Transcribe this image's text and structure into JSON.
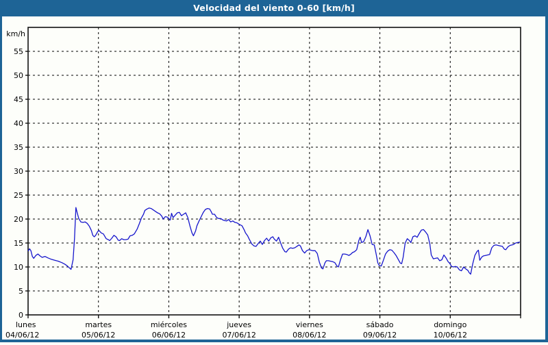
{
  "window": {
    "title": "Velocidad del viento 0-60 [km/h]"
  },
  "colors": {
    "header_bg": "#1e6496",
    "frame": "#1e6496",
    "plot_border": "#111111",
    "grid": "#000000",
    "line": "#1515cc",
    "text": "#000000",
    "title_text": "#ffffff",
    "background": "#fdfefa"
  },
  "chart_data": {
    "type": "line",
    "title": "Velocidad del viento 0-60 [km/h]",
    "xlabel": "",
    "ylabel": "km/h",
    "ylim": [
      0,
      60
    ],
    "y_ticks": [
      0,
      5,
      10,
      15,
      20,
      25,
      30,
      35,
      40,
      45,
      50,
      55
    ],
    "x_unit": "days",
    "x_range_days": [
      0,
      7
    ],
    "grid": "dashed-black-both-axes",
    "legend": "none",
    "x_days": [
      {
        "name": "lunes",
        "date": "04/06/12"
      },
      {
        "name": "martes",
        "date": "05/06/12"
      },
      {
        "name": "miércoles",
        "date": "06/06/12"
      },
      {
        "name": "jueves",
        "date": "07/06/12"
      },
      {
        "name": "viernes",
        "date": "08/06/12"
      },
      {
        "name": "sábado",
        "date": "09/06/12"
      },
      {
        "name": "domingo",
        "date": "10/06/12"
      }
    ],
    "series": [
      {
        "name": "Velocidad del viento",
        "color": "#1515cc",
        "points": [
          [
            0.0,
            13.3
          ],
          [
            0.02,
            13.8
          ],
          [
            0.04,
            13.4
          ],
          [
            0.06,
            12.2
          ],
          [
            0.08,
            11.8
          ],
          [
            0.11,
            12.4
          ],
          [
            0.14,
            12.7
          ],
          [
            0.17,
            12.3
          ],
          [
            0.2,
            12.0
          ],
          [
            0.24,
            12.2
          ],
          [
            0.28,
            11.9
          ],
          [
            0.33,
            11.6
          ],
          [
            0.38,
            11.4
          ],
          [
            0.43,
            11.2
          ],
          [
            0.48,
            10.9
          ],
          [
            0.52,
            10.6
          ],
          [
            0.55,
            10.3
          ],
          [
            0.58,
            9.9
          ],
          [
            0.61,
            9.5
          ],
          [
            0.64,
            11.5
          ],
          [
            0.66,
            16.0
          ],
          [
            0.68,
            22.4
          ],
          [
            0.7,
            21.2
          ],
          [
            0.72,
            20.1
          ],
          [
            0.75,
            19.4
          ],
          [
            0.78,
            19.3
          ],
          [
            0.81,
            19.4
          ],
          [
            0.84,
            19.1
          ],
          [
            0.87,
            18.5
          ],
          [
            0.9,
            17.6
          ],
          [
            0.92,
            16.6
          ],
          [
            0.94,
            16.3
          ],
          [
            0.96,
            16.6
          ],
          [
            0.99,
            17.4
          ],
          [
            1.01,
            17.6
          ],
          [
            1.04,
            17.1
          ],
          [
            1.07,
            16.9
          ],
          [
            1.11,
            15.9
          ],
          [
            1.14,
            15.7
          ],
          [
            1.16,
            15.5
          ],
          [
            1.19,
            16.0
          ],
          [
            1.22,
            16.6
          ],
          [
            1.25,
            16.3
          ],
          [
            1.28,
            15.6
          ],
          [
            1.3,
            15.5
          ],
          [
            1.33,
            15.9
          ],
          [
            1.36,
            15.7
          ],
          [
            1.39,
            15.7
          ],
          [
            1.42,
            15.8
          ],
          [
            1.45,
            16.5
          ],
          [
            1.48,
            16.6
          ],
          [
            1.51,
            16.9
          ],
          [
            1.55,
            17.9
          ],
          [
            1.58,
            19.0
          ],
          [
            1.61,
            20.2
          ],
          [
            1.64,
            21.0
          ],
          [
            1.66,
            21.8
          ],
          [
            1.69,
            22.1
          ],
          [
            1.72,
            22.3
          ],
          [
            1.75,
            22.2
          ],
          [
            1.78,
            21.9
          ],
          [
            1.81,
            21.6
          ],
          [
            1.84,
            21.3
          ],
          [
            1.87,
            21.1
          ],
          [
            1.9,
            20.6
          ],
          [
            1.92,
            20.0
          ],
          [
            1.95,
            20.5
          ],
          [
            1.98,
            20.4
          ],
          [
            2.02,
            19.8
          ],
          [
            2.04,
            21.2
          ],
          [
            2.06,
            20.3
          ],
          [
            2.09,
            20.8
          ],
          [
            2.12,
            21.3
          ],
          [
            2.15,
            21.4
          ],
          [
            2.18,
            20.7
          ],
          [
            2.21,
            21.0
          ],
          [
            2.24,
            21.3
          ],
          [
            2.27,
            20.3
          ],
          [
            2.3,
            18.6
          ],
          [
            2.33,
            17.1
          ],
          [
            2.35,
            16.5
          ],
          [
            2.38,
            17.5
          ],
          [
            2.4,
            18.6
          ],
          [
            2.43,
            19.6
          ],
          [
            2.46,
            20.5
          ],
          [
            2.49,
            21.4
          ],
          [
            2.52,
            22.0
          ],
          [
            2.55,
            22.2
          ],
          [
            2.58,
            22.1
          ],
          [
            2.6,
            21.6
          ],
          [
            2.62,
            21.0
          ],
          [
            2.65,
            21.0
          ],
          [
            2.68,
            20.3
          ],
          [
            2.71,
            20.1
          ],
          [
            2.74,
            20.1
          ],
          [
            2.77,
            19.8
          ],
          [
            2.79,
            19.7
          ],
          [
            2.82,
            19.6
          ],
          [
            2.85,
            19.9
          ],
          [
            2.88,
            19.4
          ],
          [
            2.91,
            19.6
          ],
          [
            2.94,
            19.3
          ],
          [
            2.97,
            19.2
          ],
          [
            3.0,
            18.9
          ],
          [
            3.04,
            18.6
          ],
          [
            3.07,
            17.8
          ],
          [
            3.09,
            17.1
          ],
          [
            3.12,
            16.5
          ],
          [
            3.14,
            15.9
          ],
          [
            3.18,
            14.8
          ],
          [
            3.21,
            14.4
          ],
          [
            3.24,
            14.3
          ],
          [
            3.27,
            14.9
          ],
          [
            3.3,
            15.4
          ],
          [
            3.33,
            14.7
          ],
          [
            3.36,
            15.5
          ],
          [
            3.39,
            16.0
          ],
          [
            3.42,
            15.4
          ],
          [
            3.45,
            16.1
          ],
          [
            3.48,
            16.3
          ],
          [
            3.5,
            15.8
          ],
          [
            3.53,
            15.4
          ],
          [
            3.56,
            16.2
          ],
          [
            3.59,
            15.0
          ],
          [
            3.62,
            13.9
          ],
          [
            3.65,
            13.2
          ],
          [
            3.67,
            13.1
          ],
          [
            3.7,
            13.7
          ],
          [
            3.73,
            14.0
          ],
          [
            3.76,
            13.9
          ],
          [
            3.79,
            14.0
          ],
          [
            3.82,
            14.3
          ],
          [
            3.85,
            14.6
          ],
          [
            3.87,
            14.4
          ],
          [
            3.9,
            13.4
          ],
          [
            3.93,
            12.9
          ],
          [
            3.96,
            13.4
          ],
          [
            3.99,
            13.6
          ],
          [
            4.02,
            13.5
          ],
          [
            4.05,
            13.4
          ],
          [
            4.08,
            13.4
          ],
          [
            4.11,
            12.8
          ],
          [
            4.14,
            11.0
          ],
          [
            4.17,
            9.8
          ],
          [
            4.19,
            9.6
          ],
          [
            4.22,
            10.9
          ],
          [
            4.24,
            11.3
          ],
          [
            4.27,
            11.3
          ],
          [
            4.3,
            11.2
          ],
          [
            4.33,
            11.1
          ],
          [
            4.36,
            10.9
          ],
          [
            4.39,
            10.2
          ],
          [
            4.41,
            10.0
          ],
          [
            4.44,
            11.5
          ],
          [
            4.47,
            12.7
          ],
          [
            4.5,
            12.7
          ],
          [
            4.53,
            12.6
          ],
          [
            4.56,
            12.4
          ],
          [
            4.59,
            12.7
          ],
          [
            4.61,
            13.0
          ],
          [
            4.64,
            13.2
          ],
          [
            4.67,
            13.6
          ],
          [
            4.7,
            15.5
          ],
          [
            4.72,
            16.2
          ],
          [
            4.74,
            15.1
          ],
          [
            4.77,
            15.3
          ],
          [
            4.8,
            16.3
          ],
          [
            4.83,
            17.8
          ],
          [
            4.86,
            16.5
          ],
          [
            4.89,
            14.7
          ],
          [
            4.92,
            14.6
          ],
          [
            4.95,
            12.5
          ],
          [
            4.97,
            10.9
          ],
          [
            4.99,
            10.3
          ],
          [
            5.02,
            10.2
          ],
          [
            5.05,
            11.4
          ],
          [
            5.08,
            12.7
          ],
          [
            5.11,
            13.3
          ],
          [
            5.14,
            13.6
          ],
          [
            5.17,
            13.5
          ],
          [
            5.2,
            13.0
          ],
          [
            5.23,
            12.4
          ],
          [
            5.26,
            11.6
          ],
          [
            5.29,
            10.8
          ],
          [
            5.31,
            10.7
          ],
          [
            5.33,
            12.0
          ],
          [
            5.36,
            15.0
          ],
          [
            5.39,
            15.9
          ],
          [
            5.42,
            15.5
          ],
          [
            5.44,
            15.1
          ],
          [
            5.47,
            16.3
          ],
          [
            5.5,
            16.5
          ],
          [
            5.53,
            16.2
          ],
          [
            5.56,
            17.0
          ],
          [
            5.59,
            17.7
          ],
          [
            5.62,
            17.8
          ],
          [
            5.65,
            17.3
          ],
          [
            5.68,
            16.7
          ],
          [
            5.71,
            14.8
          ],
          [
            5.73,
            12.5
          ],
          [
            5.76,
            11.7
          ],
          [
            5.79,
            11.8
          ],
          [
            5.82,
            11.9
          ],
          [
            5.85,
            11.3
          ],
          [
            5.88,
            11.5
          ],
          [
            5.91,
            12.5
          ],
          [
            5.94,
            11.9
          ],
          [
            5.97,
            11.1
          ],
          [
            5.99,
            10.8
          ],
          [
            6.02,
            10.1
          ],
          [
            6.05,
            10.0
          ],
          [
            6.07,
            10.1
          ],
          [
            6.1,
            10.0
          ],
          [
            6.13,
            9.4
          ],
          [
            6.16,
            9.2
          ],
          [
            6.19,
            10.0
          ],
          [
            6.22,
            9.6
          ],
          [
            6.25,
            9.3
          ],
          [
            6.27,
            8.8
          ],
          [
            6.29,
            8.5
          ],
          [
            6.32,
            10.7
          ],
          [
            6.35,
            12.4
          ],
          [
            6.38,
            13.2
          ],
          [
            6.4,
            13.5
          ],
          [
            6.42,
            11.4
          ],
          [
            6.45,
            12.1
          ],
          [
            6.47,
            12.3
          ],
          [
            6.5,
            12.4
          ],
          [
            6.53,
            12.5
          ],
          [
            6.56,
            12.6
          ],
          [
            6.59,
            14.0
          ],
          [
            6.62,
            14.5
          ],
          [
            6.65,
            14.6
          ],
          [
            6.68,
            14.5
          ],
          [
            6.71,
            14.4
          ],
          [
            6.74,
            14.3
          ],
          [
            6.77,
            13.7
          ],
          [
            6.79,
            13.6
          ],
          [
            6.82,
            14.2
          ],
          [
            6.85,
            14.5
          ],
          [
            6.88,
            14.6
          ],
          [
            6.9,
            14.7
          ],
          [
            6.93,
            15.0
          ],
          [
            6.96,
            15.1
          ],
          [
            6.99,
            15.2
          ]
        ]
      }
    ]
  }
}
